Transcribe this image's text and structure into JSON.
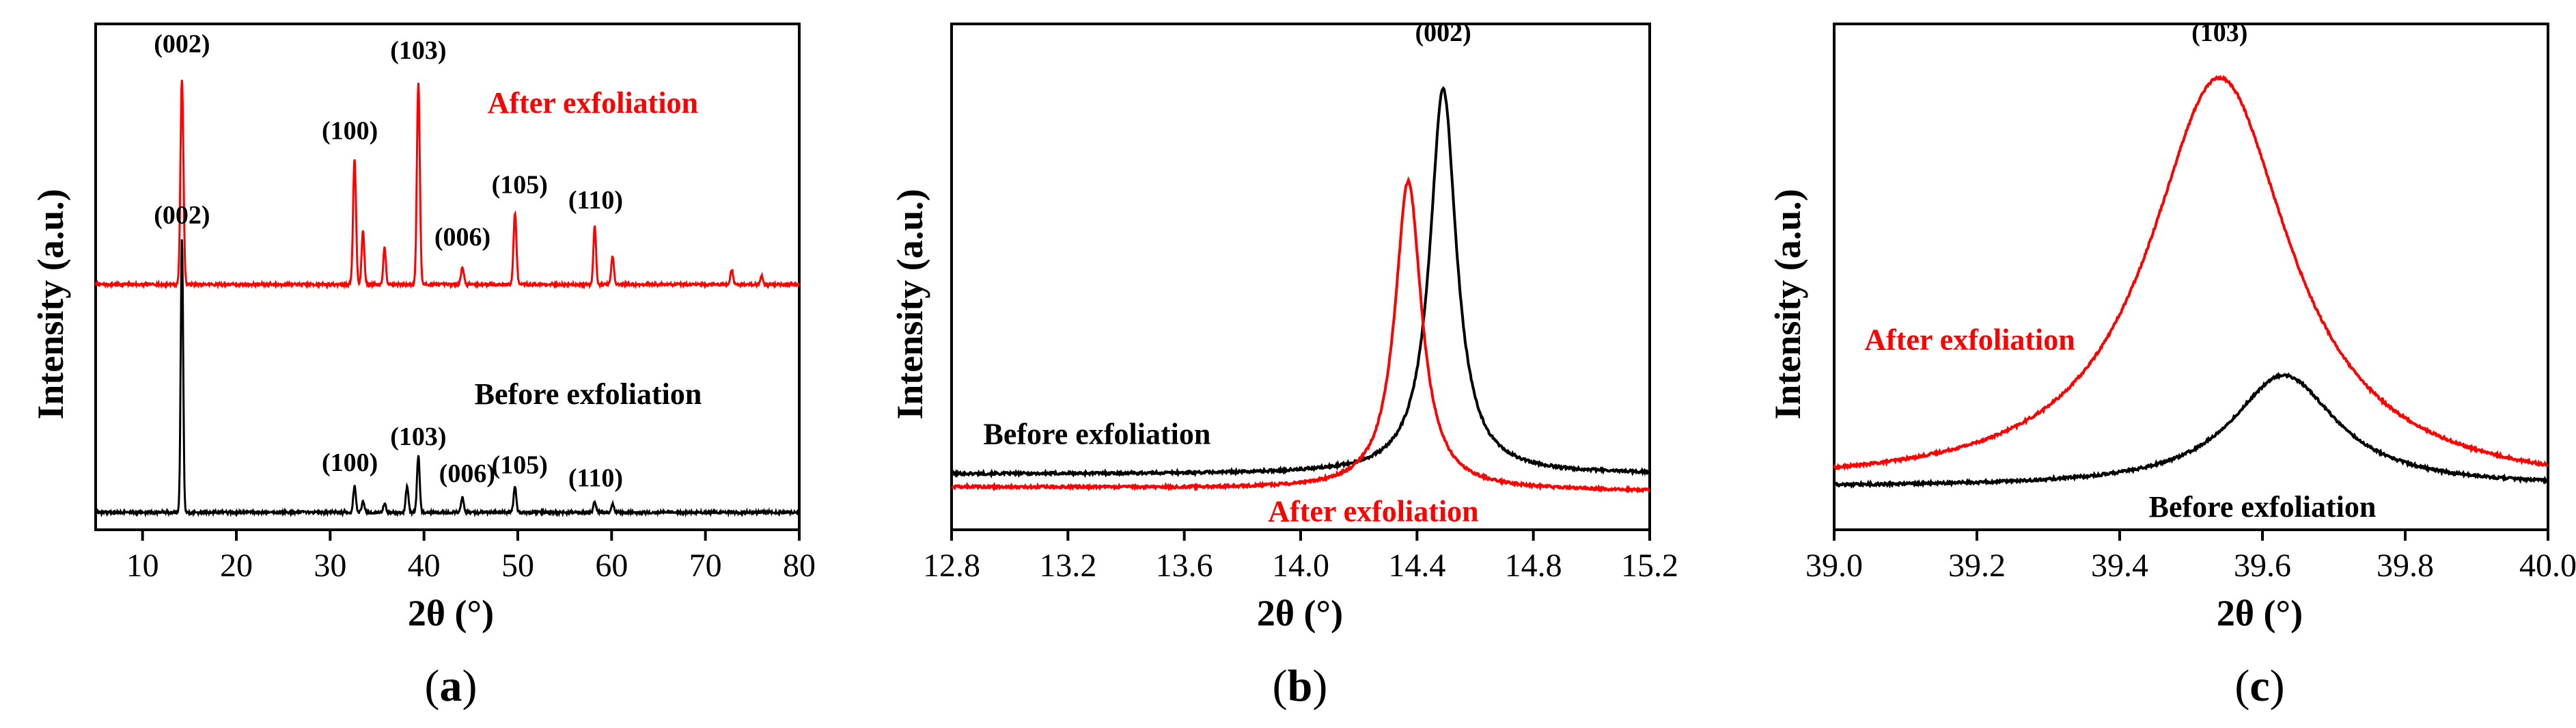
{
  "chart_data": [
    {
      "id": "a",
      "type": "line",
      "panel_label": "a",
      "xlabel": "2θ (°)",
      "ylabel": "Intensity (a.u.)",
      "xlim": [
        5,
        80
      ],
      "xticks": [
        10,
        20,
        30,
        40,
        50,
        60,
        70,
        80
      ],
      "xtick_labels": [
        "10",
        "20",
        "30",
        "40",
        "50",
        "60",
        "70",
        "80"
      ],
      "y_ticks_shown": false,
      "series": [
        {
          "name": "After exfoliation",
          "color": "#ff0000",
          "offset": 1.05,
          "baseline": 0.0,
          "peaks": [
            {
              "x": 14.2,
              "h": 0.95,
              "w": 0.22
            },
            {
              "x": 32.6,
              "h": 0.58,
              "w": 0.22
            },
            {
              "x": 33.5,
              "h": 0.25,
              "w": 0.2
            },
            {
              "x": 35.8,
              "h": 0.17,
              "w": 0.2
            },
            {
              "x": 39.4,
              "h": 0.93,
              "w": 0.22
            },
            {
              "x": 44.1,
              "h": 0.08,
              "w": 0.22
            },
            {
              "x": 49.7,
              "h": 0.33,
              "w": 0.22
            },
            {
              "x": 58.2,
              "h": 0.27,
              "w": 0.2
            },
            {
              "x": 60.1,
              "h": 0.13,
              "w": 0.2
            },
            {
              "x": 72.8,
              "h": 0.07,
              "w": 0.2
            },
            {
              "x": 76.0,
              "h": 0.04,
              "w": 0.2
            }
          ]
        },
        {
          "name": "Before exfoliation",
          "color": "#000000",
          "offset": 0.0,
          "baseline": 0.0,
          "peaks": [
            {
              "x": 14.2,
              "h": 1.26,
              "w": 0.18
            },
            {
              "x": 32.6,
              "h": 0.12,
              "w": 0.2
            },
            {
              "x": 33.5,
              "h": 0.05,
              "w": 0.2
            },
            {
              "x": 35.8,
              "h": 0.04,
              "w": 0.2
            },
            {
              "x": 38.2,
              "h": 0.12,
              "w": 0.2
            },
            {
              "x": 39.4,
              "h": 0.26,
              "w": 0.2
            },
            {
              "x": 44.1,
              "h": 0.07,
              "w": 0.2
            },
            {
              "x": 49.7,
              "h": 0.12,
              "w": 0.2
            },
            {
              "x": 58.2,
              "h": 0.05,
              "w": 0.2
            },
            {
              "x": 60.1,
              "h": 0.04,
              "w": 0.2
            }
          ]
        }
      ],
      "annotations": [
        {
          "text": "(002)",
          "x": 14.2,
          "y": 2.12
        },
        {
          "text": "(100)",
          "x": 32.1,
          "y": 1.72
        },
        {
          "text": "(103)",
          "x": 39.4,
          "y": 2.09
        },
        {
          "text": "(006)",
          "x": 44.1,
          "y": 1.23
        },
        {
          "text": "(105)",
          "x": 50.2,
          "y": 1.47
        },
        {
          "text": "(110)",
          "x": 58.3,
          "y": 1.4
        },
        {
          "text": "(002)",
          "x": 14.2,
          "y": 1.33
        },
        {
          "text": "(100)",
          "x": 32.1,
          "y": 0.19
        },
        {
          "text": "(103)",
          "x": 39.4,
          "y": 0.31
        },
        {
          "text": "(006)",
          "x": 44.6,
          "y": 0.14
        },
        {
          "text": "(105)",
          "x": 50.2,
          "y": 0.18
        },
        {
          "text": "(110)",
          "x": 58.3,
          "y": 0.12
        }
      ],
      "series_labels": [
        {
          "text": "After exfoliation",
          "color": "#ff0000",
          "x": 58.0,
          "y": 1.84
        },
        {
          "text": "Before exfoliation",
          "color": "#000000",
          "x": 57.5,
          "y": 0.5
        }
      ]
    },
    {
      "id": "b",
      "type": "line",
      "panel_label": "b",
      "xlabel": "2θ (°)",
      "ylabel": "Intensity (a.u.)",
      "xlim": [
        12.8,
        15.2
      ],
      "xticks": [
        12.8,
        13.2,
        13.6,
        14.0,
        14.4,
        14.8,
        15.2
      ],
      "xtick_labels": [
        "12.8",
        "13.2",
        "13.6",
        "14.0",
        "14.4",
        "14.8",
        "15.2"
      ],
      "y_ticks_shown": false,
      "series": [
        {
          "name": "Before exfoliation",
          "color": "#000000",
          "center": 14.49,
          "height": 0.9,
          "gamma": 0.055,
          "base_left": 0.03,
          "base_right": 0.03
        },
        {
          "name": "After exfoliation",
          "color": "#ff0000",
          "center": 14.37,
          "height": 0.72,
          "gamma": 0.055,
          "base_left": 0.0,
          "base_right": -0.01
        }
      ],
      "annotations": [
        {
          "text": "(002)",
          "x": 14.49,
          "y": 1.04
        }
      ],
      "series_labels": [
        {
          "text": "Before exfoliation",
          "color": "#000000",
          "x": 13.3,
          "y": 0.1
        },
        {
          "text": "After exfoliation",
          "color": "#ff0000",
          "x": 14.25,
          "y": -0.08
        }
      ]
    },
    {
      "id": "c",
      "type": "line",
      "panel_label": "c",
      "xlabel": "2θ (°)",
      "ylabel": "Intensity (a.u.)",
      "xlim": [
        39.0,
        40.0
      ],
      "xticks": [
        39.0,
        39.2,
        39.4,
        39.6,
        39.8,
        40.0
      ],
      "xtick_labels": [
        "39.0",
        "39.2",
        "39.4",
        "39.6",
        "39.8",
        "40.0"
      ],
      "y_ticks_shown": false,
      "series": [
        {
          "name": "After exfoliation",
          "color": "#ff0000",
          "center": 39.54,
          "height": 0.96,
          "gamma": 0.12,
          "base_left": 0.0,
          "base_right": -0.01
        },
        {
          "name": "Before exfoliation",
          "color": "#000000",
          "center": 39.63,
          "height": 0.26,
          "gamma": 0.09,
          "base_left": 0.0,
          "base_right": 0.0
        }
      ],
      "annotations": [
        {
          "text": "(103)",
          "x": 39.54,
          "y": 1.04
        }
      ],
      "series_labels": [
        {
          "text": "After exfoliation",
          "color": "#ff0000",
          "x": 39.19,
          "y": 0.32
        },
        {
          "text": "Before exfoliation",
          "color": "#000000",
          "x": 39.6,
          "y": -0.07
        }
      ]
    }
  ]
}
